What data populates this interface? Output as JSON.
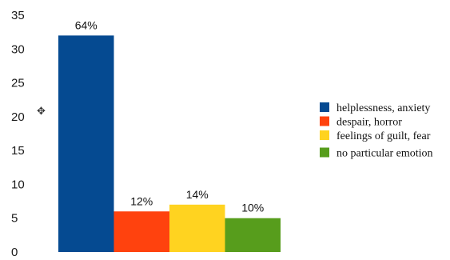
{
  "chart_data": {
    "type": "bar",
    "categories": [
      "helplessness, anxiety",
      "despair, horror",
      "feelings of guilt, fear",
      "no particular emotion"
    ],
    "values": [
      32,
      6,
      7,
      5
    ],
    "data_labels": [
      "64%",
      "12%",
      "14%",
      "10%"
    ],
    "colors": [
      "#054a91",
      "#ff420e",
      "#ffd320",
      "#579d1c"
    ],
    "yticks": [
      0,
      5,
      10,
      15,
      20,
      25,
      30,
      35
    ],
    "ylim": [
      0,
      35
    ],
    "grid": false,
    "legend_position": "right",
    "xlabel": "",
    "ylabel": "",
    "title": ""
  },
  "cursor_icon": "move-cursor-icon"
}
